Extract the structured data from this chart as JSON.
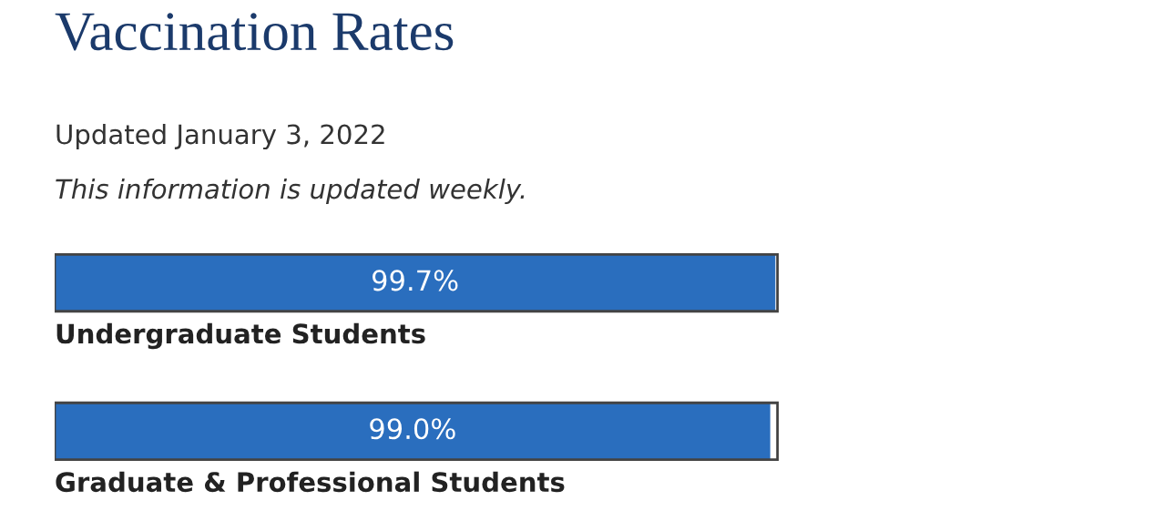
{
  "chart_data": {
    "type": "bar",
    "orientation": "horizontal",
    "title": "Vaccination Rates",
    "subtitle": "Updated January 3, 2022",
    "annotations": [
      "This information is updated weekly."
    ],
    "categories": [
      "Undergraduate Students",
      "Graduate & Professional Students"
    ],
    "values": [
      99.7,
      99.0
    ],
    "color": "#2a6ebe",
    "value_labels": [
      "99.7%",
      "99.0%"
    ],
    "xlim": [
      0,
      100
    ],
    "tick_labels": false
  }
}
